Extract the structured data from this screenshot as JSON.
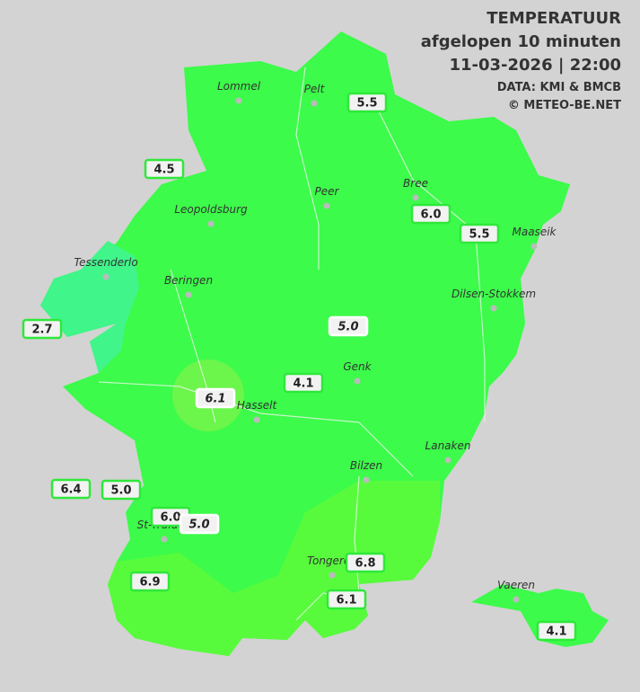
{
  "header": {
    "title": "TEMPERATUUR",
    "subtitle": "afgelopen 10 minuten",
    "datetime": "11-03-2026  |  22:00",
    "source": "DATA: KMI & BMCB",
    "copyright": "© METEO-BE.NET"
  },
  "towns": [
    "Lommel",
    "Pelt",
    "Peer",
    "Bree",
    "Maaseik",
    "Leopoldsburg",
    "Tessenderlo",
    "Beringen",
    "Dilsen-Stokkem",
    "Genk",
    "Hasselt",
    "Lanaken",
    "Bilzen",
    "St-Truiden",
    "Tongeren",
    "Vaeren"
  ],
  "stations": [
    "5.5",
    "4.5",
    "6.0",
    "5.5",
    "5.0",
    "2.7",
    "4.1",
    "6.1",
    "6.4",
    "5.0",
    "6.0",
    "5.0",
    "6.8",
    "6.9",
    "6.1",
    "4.1"
  ]
}
